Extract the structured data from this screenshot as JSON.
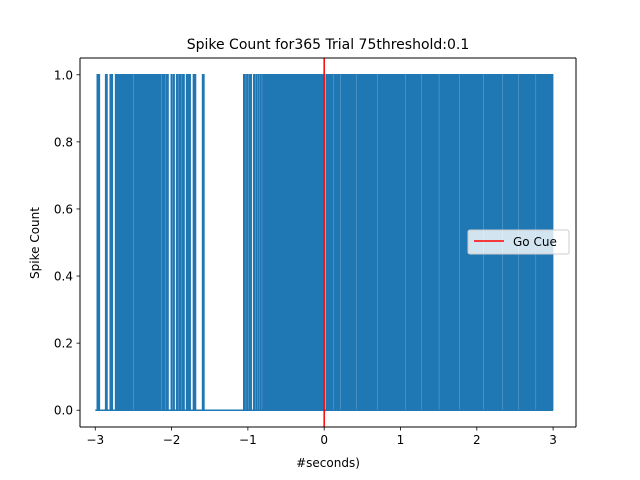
{
  "chart_data": {
    "type": "line",
    "title": "Spike Count for365 Trial 75threshold:0.1",
    "xlabel": "#seconds)",
    "ylabel": "Spike Count",
    "xlim": [
      -3.2,
      3.3
    ],
    "ylim": [
      -0.05,
      1.05
    ],
    "xticks": [
      -3,
      -2,
      -1,
      0,
      1,
      2,
      3
    ],
    "xtick_labels": [
      "−3",
      "−2",
      "−1",
      "0",
      "1",
      "2",
      "3"
    ],
    "yticks": [
      0.0,
      0.2,
      0.4,
      0.6,
      0.8,
      1.0
    ],
    "ytick_labels": [
      "0.0",
      "0.2",
      "0.4",
      "0.6",
      "0.8",
      "1.0"
    ],
    "grid": false,
    "legend_position": "center-right",
    "series": [
      {
        "name": "",
        "color": "#1f77b4",
        "x_start": -3.0,
        "x_end": 3.0,
        "spike_times": [
          -2.97,
          -2.96,
          -2.95,
          -2.86,
          -2.85,
          -2.8,
          -2.78,
          -2.73,
          -2.72,
          -2.7,
          -2.68,
          -2.66,
          -2.64,
          -2.63,
          -2.62,
          -2.6,
          -2.58,
          -2.56,
          -2.54,
          -2.52,
          -2.51,
          -2.48,
          -2.47,
          -2.45,
          -2.44,
          -2.42,
          -2.41,
          -2.4,
          -2.38,
          -2.37,
          -2.35,
          -2.33,
          -2.31,
          -2.3,
          -2.28,
          -2.26,
          -2.25,
          -2.23,
          -2.21,
          -2.2,
          -2.18,
          -2.16,
          -2.15,
          -2.12,
          -2.1,
          -2.07,
          -2.05,
          -2.0,
          -1.97,
          -1.93,
          -1.9,
          -1.89,
          -1.86,
          -1.84,
          -1.8,
          -1.78,
          -1.76,
          -1.71,
          -1.69,
          -1.59,
          -1.58,
          -1.05,
          -1.04,
          -1.01,
          -0.98,
          -0.96,
          -0.92,
          -0.89,
          -0.86,
          -0.83,
          -0.8,
          -0.78,
          -0.76,
          -0.75,
          -0.73,
          -0.71,
          -0.7,
          -0.68,
          -0.66,
          -0.64,
          -0.62,
          -0.6,
          -0.58,
          -0.56,
          -0.54,
          -0.52,
          -0.5,
          -0.48,
          -0.47,
          -0.45,
          -0.43,
          -0.41,
          -0.39,
          -0.37,
          -0.35,
          -0.33,
          -0.31,
          -0.3,
          -0.28,
          -0.26,
          -0.24,
          -0.22,
          -0.2,
          -0.18,
          -0.16,
          -0.14,
          -0.12,
          -0.1,
          -0.08,
          -0.06,
          -0.04,
          -0.02,
          0.03,
          0.05,
          0.07,
          0.09,
          0.11,
          0.14,
          0.16,
          0.18,
          0.2,
          0.23,
          0.25,
          0.27,
          0.29,
          0.31,
          0.33,
          0.35,
          0.37,
          0.39,
          0.41,
          0.44,
          0.46,
          0.48,
          0.5,
          0.52,
          0.54,
          0.56,
          0.58,
          0.6,
          0.62,
          0.64,
          0.66,
          0.68,
          0.71,
          0.73,
          0.75,
          0.77,
          0.79,
          0.81,
          0.83,
          0.85,
          0.87,
          0.89,
          0.91,
          0.93,
          0.95,
          0.97,
          0.99,
          1.01,
          1.03,
          1.05,
          1.08,
          1.1,
          1.12,
          1.14,
          1.16,
          1.18,
          1.2,
          1.22,
          1.24,
          1.26,
          1.29,
          1.31,
          1.33,
          1.35,
          1.37,
          1.39,
          1.41,
          1.43,
          1.45,
          1.47,
          1.49,
          1.52,
          1.54,
          1.56,
          1.58,
          1.6,
          1.62,
          1.64,
          1.66,
          1.68,
          1.7,
          1.72,
          1.74,
          1.76,
          1.79,
          1.81,
          1.83,
          1.85,
          1.87,
          1.89,
          1.91,
          1.93,
          1.95,
          1.97,
          1.99,
          2.01,
          2.03,
          2.05,
          2.07,
          2.1,
          2.12,
          2.14,
          2.16,
          2.18,
          2.2,
          2.22,
          2.24,
          2.26,
          2.28,
          2.3,
          2.32,
          2.35,
          2.37,
          2.39,
          2.41,
          2.43,
          2.45,
          2.47,
          2.49,
          2.51,
          2.53,
          2.56,
          2.58,
          2.6,
          2.62,
          2.64,
          2.66,
          2.68,
          2.7,
          2.72,
          2.74,
          2.76,
          2.79,
          2.81,
          2.83,
          2.85,
          2.87,
          2.89,
          2.91,
          2.93,
          2.95,
          2.97,
          2.99
        ]
      },
      {
        "name": "Go Cue",
        "color": "#ff0000",
        "x": 0.0
      }
    ]
  }
}
